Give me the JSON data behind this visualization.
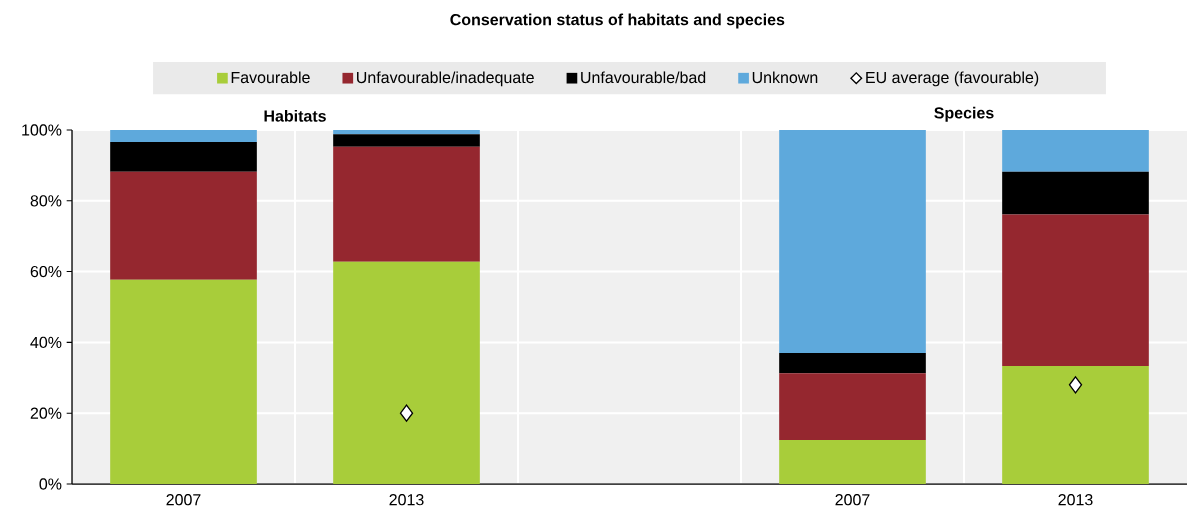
{
  "chart_data": {
    "type": "bar",
    "stacked": true,
    "title": "Conservation status of habitats and species",
    "annotations": [
      "Habitats",
      "Species"
    ],
    "categories": [
      "2007",
      "2013",
      null,
      "2007",
      "2013"
    ],
    "series": [
      {
        "name": "Favourable",
        "color": "#a8cd3a",
        "values": [
          57.7,
          62.8,
          null,
          12.4,
          33.3
        ]
      },
      {
        "name": "Unfavourable/inadequate",
        "color": "#95272f",
        "values": [
          30.5,
          32.5,
          null,
          18.9,
          42.8
        ]
      },
      {
        "name": "Unfavourable/bad",
        "color": "#000000",
        "values": [
          8.4,
          3.5,
          null,
          5.7,
          12.1
        ]
      },
      {
        "name": "Unknown",
        "color": "#5ea9dc",
        "values": [
          3.4,
          1.2,
          null,
          63.0,
          11.8
        ]
      },
      {
        "name": "EU average (favourable)",
        "type": "scatter",
        "marker": "diamond",
        "color": "#ffffff",
        "values": [
          null,
          20,
          null,
          null,
          28
        ]
      }
    ],
    "ylim": [
      0,
      100
    ],
    "yticks": [
      {
        "value": 0,
        "label": "0%"
      },
      {
        "value": 20,
        "label": "20%"
      },
      {
        "value": 40,
        "label": "40%"
      },
      {
        "value": 60,
        "label": "60%"
      },
      {
        "value": 80,
        "label": "80%"
      },
      {
        "value": 100,
        "label": "100%"
      }
    ],
    "grid": true,
    "legend": "top"
  }
}
